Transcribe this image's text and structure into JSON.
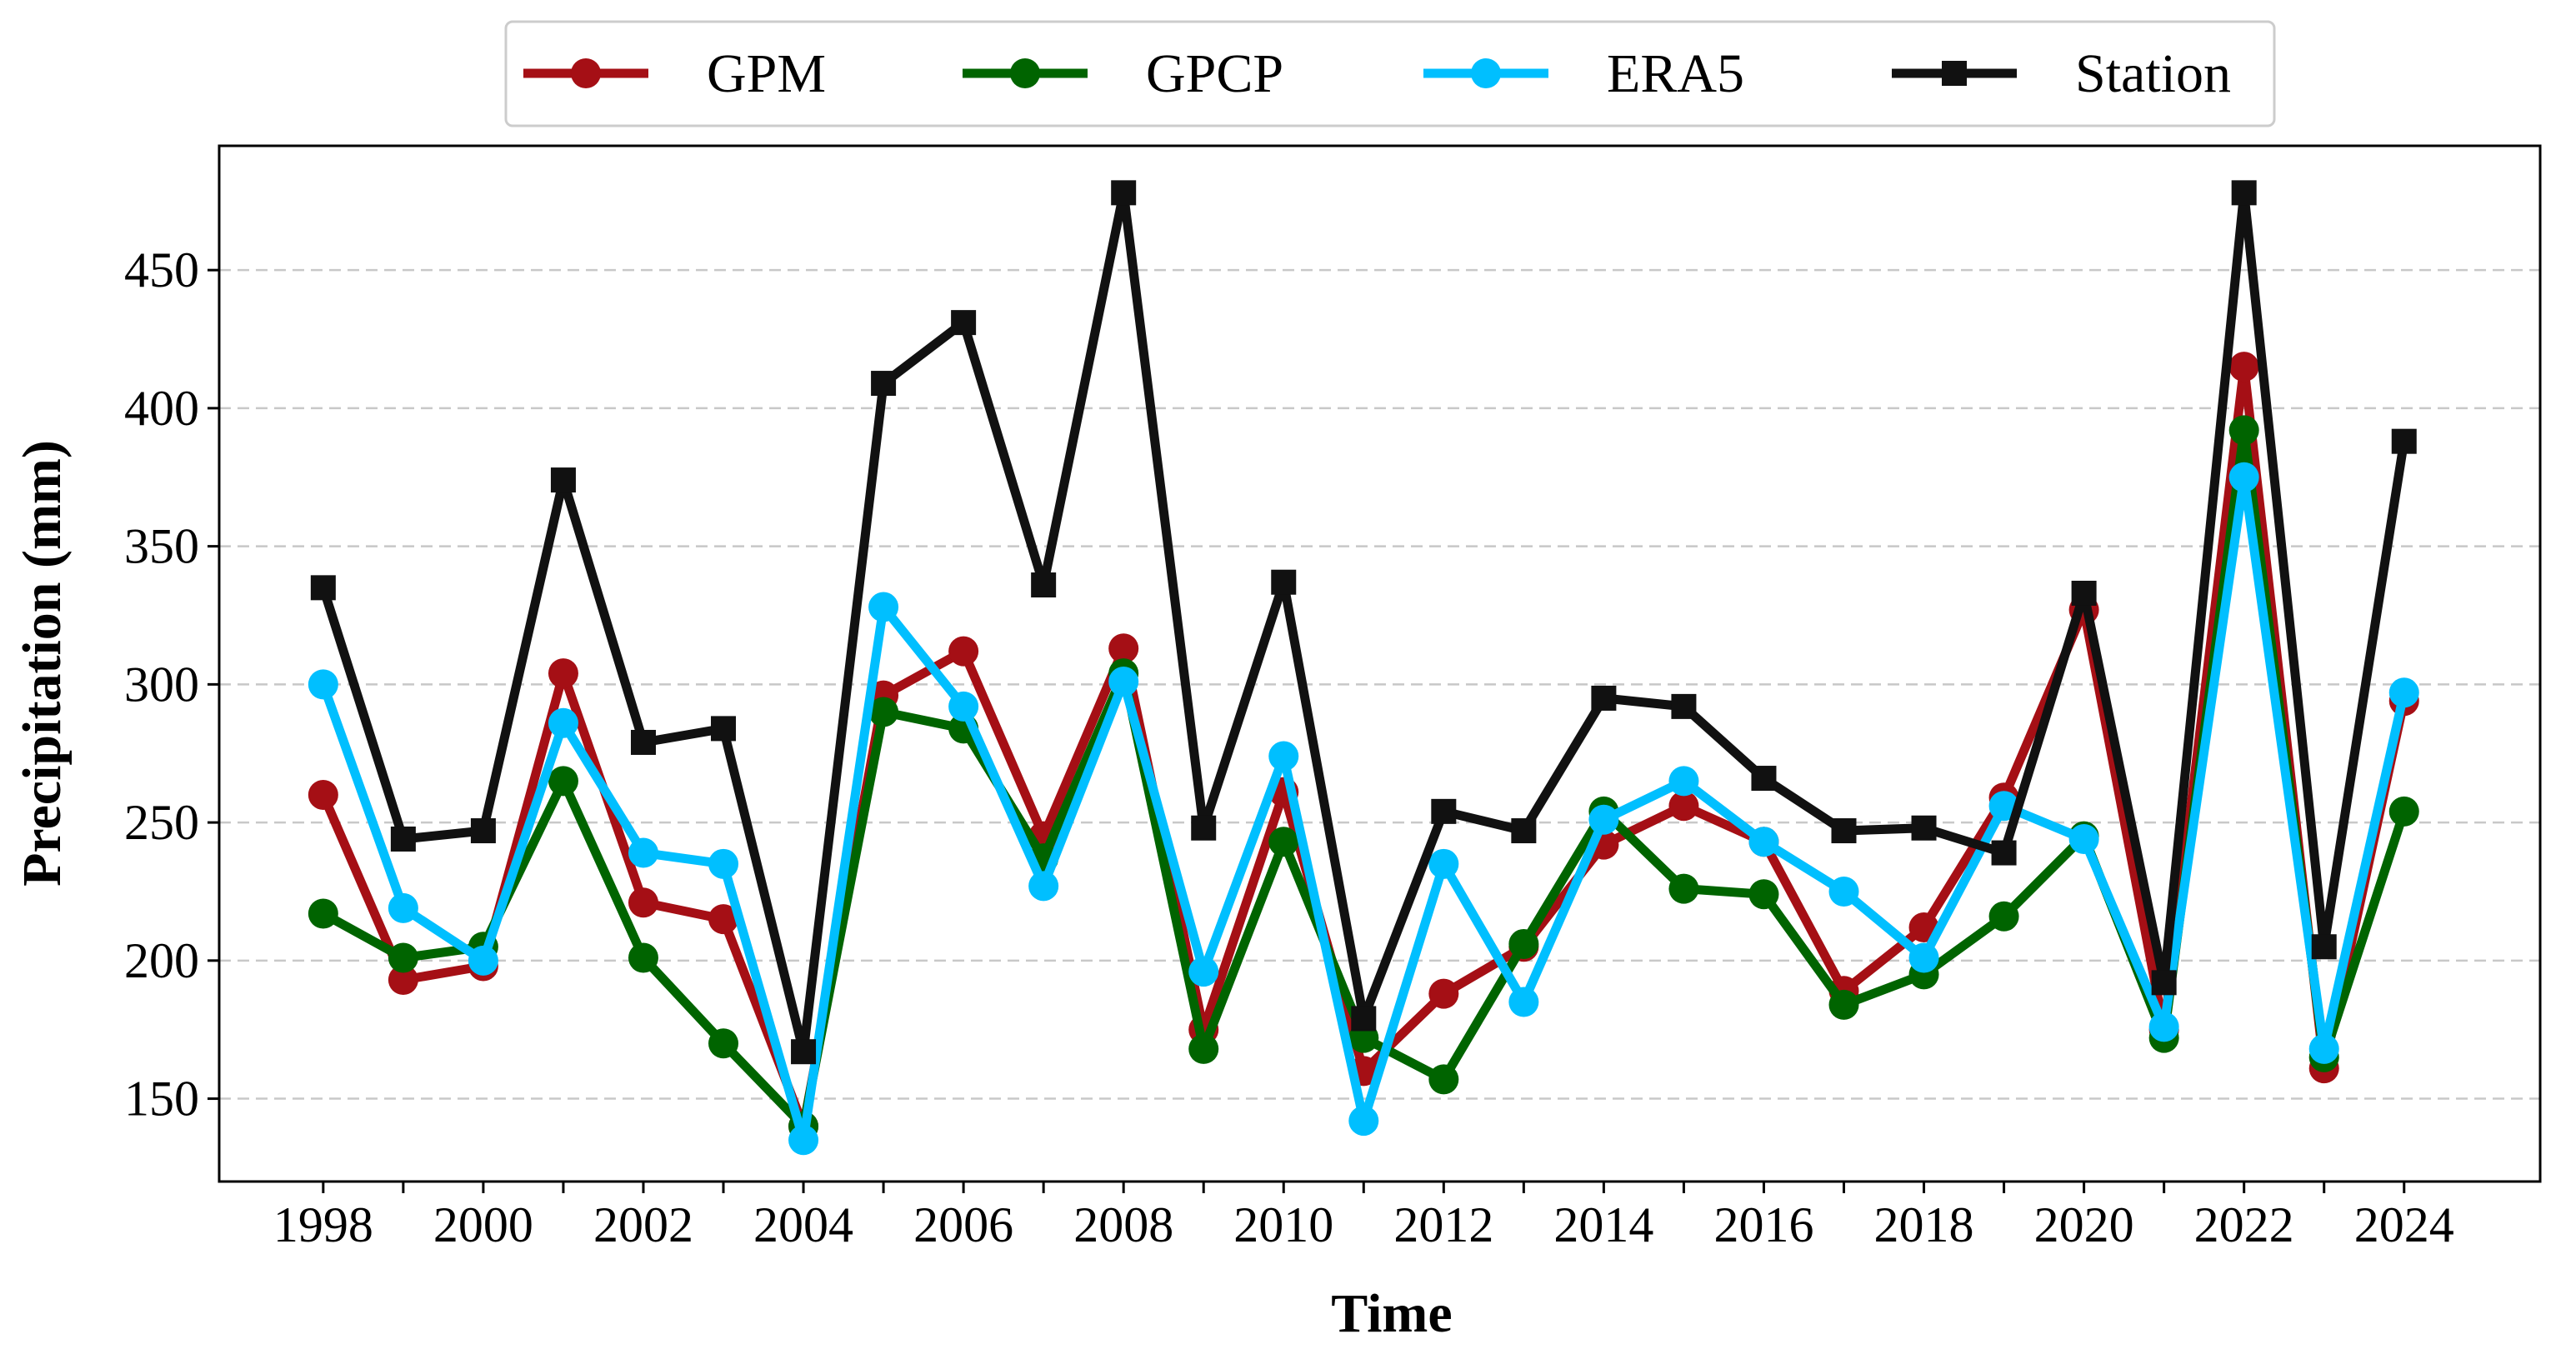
{
  "chart_data": {
    "type": "line",
    "title": "",
    "xlabel": "Time",
    "ylabel": "Precipitation (mm)",
    "xlim": [
      1996.7,
      2025.7
    ],
    "ylim": [
      120,
      495
    ],
    "x": [
      1998,
      1999,
      2000,
      2001,
      2002,
      2003,
      2004,
      2005,
      2006,
      2007,
      2008,
      2009,
      2010,
      2011,
      2012,
      2013,
      2014,
      2015,
      2016,
      2017,
      2018,
      2019,
      2020,
      2021,
      2022,
      2023,
      2024
    ],
    "xticks": [
      1998,
      2000,
      2002,
      2004,
      2006,
      2008,
      2010,
      2012,
      2014,
      2016,
      2018,
      2020,
      2022,
      2024
    ],
    "yticks": [
      150,
      200,
      250,
      300,
      350,
      400,
      450
    ],
    "grid": "horizontal dashed",
    "legend_position": "top-center",
    "series": [
      {
        "name": "GPM",
        "color": "#a50f15",
        "marker": "circle",
        "values": [
          260,
          193,
          198,
          304,
          221,
          215,
          140,
          296,
          312,
          245,
          313,
          175,
          261,
          160,
          188,
          205,
          242,
          256,
          243,
          189,
          212,
          259,
          327,
          175,
          415,
          161,
          294
        ]
      },
      {
        "name": "GPCP",
        "color": "#006400",
        "marker": "circle",
        "values": [
          217,
          201,
          205,
          265,
          201,
          170,
          140,
          290,
          284,
          237,
          304,
          168,
          243,
          172,
          157,
          206,
          254,
          226,
          224,
          184,
          195,
          216,
          245,
          172,
          392,
          165,
          254
        ]
      },
      {
        "name": "ERA5",
        "color": "#00bfff",
        "marker": "circle",
        "values": [
          300,
          219,
          200,
          286,
          239,
          235,
          135,
          328,
          292,
          227,
          301,
          196,
          274,
          142,
          235,
          185,
          251,
          265,
          243,
          225,
          201,
          256,
          244,
          176,
          375,
          168,
          297
        ]
      },
      {
        "name": "Station",
        "color": "#111111",
        "marker": "square",
        "values": [
          335,
          244,
          247,
          374,
          279,
          284,
          167,
          409,
          431,
          336,
          478,
          248,
          337,
          179,
          254,
          247,
          295,
          292,
          266,
          247,
          248,
          239,
          333,
          192,
          478,
          205,
          388
        ]
      }
    ]
  }
}
